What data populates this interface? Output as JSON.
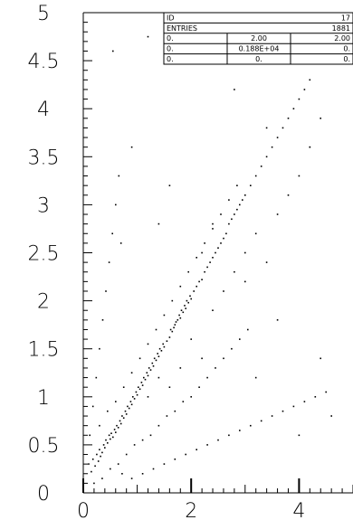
{
  "chart_data": {
    "type": "scatter",
    "title": "",
    "xlabel": "",
    "ylabel": "",
    "xlim": [
      0,
      5.0
    ],
    "ylim": [
      0,
      5.0
    ],
    "x_ticks": [
      "0",
      "2",
      "4"
    ],
    "y_ticks": [
      "0",
      "0.5",
      "1",
      "1.5",
      "2",
      "2.5",
      "3",
      "3.5",
      "4",
      "4.5",
      "5"
    ],
    "grid": false,
    "legend": "none",
    "marker_color": "#000000",
    "stats_box": {
      "id_label": "ID",
      "id_value": "17",
      "entries_label": "ENTRIES",
      "entries_value": "1881",
      "rows": [
        [
          "0.",
          "2.00",
          "2.00"
        ],
        [
          "0.",
          "0.188E+04",
          "0."
        ],
        [
          "0.",
          "0.",
          "0."
        ]
      ]
    },
    "series": [
      {
        "points": [
          [
            0.1,
            0.3
          ],
          [
            0.15,
            0.22
          ],
          [
            0.18,
            0.35
          ],
          [
            0.22,
            0.28
          ],
          [
            0.25,
            0.4
          ],
          [
            0.28,
            0.33
          ],
          [
            0.3,
            0.45
          ],
          [
            0.32,
            0.38
          ],
          [
            0.35,
            0.42
          ],
          [
            0.38,
            0.5
          ],
          [
            0.4,
            0.47
          ],
          [
            0.42,
            0.55
          ],
          [
            0.45,
            0.52
          ],
          [
            0.48,
            0.6
          ],
          [
            0.5,
            0.56
          ],
          [
            0.52,
            0.62
          ],
          [
            0.55,
            0.58
          ],
          [
            0.58,
            0.66
          ],
          [
            0.6,
            0.63
          ],
          [
            0.62,
            0.7
          ],
          [
            0.65,
            0.68
          ],
          [
            0.68,
            0.75
          ],
          [
            0.7,
            0.72
          ],
          [
            0.72,
            0.8
          ],
          [
            0.75,
            0.78
          ],
          [
            0.78,
            0.85
          ],
          [
            0.8,
            0.82
          ],
          [
            0.82,
            0.9
          ],
          [
            0.85,
            0.88
          ],
          [
            0.88,
            0.95
          ],
          [
            0.9,
            0.92
          ],
          [
            0.92,
            1.0
          ],
          [
            0.95,
            0.98
          ],
          [
            0.98,
            1.05
          ],
          [
            1.0,
            1.02
          ],
          [
            1.02,
            1.1
          ],
          [
            1.05,
            1.08
          ],
          [
            1.08,
            1.15
          ],
          [
            1.1,
            1.12
          ],
          [
            1.12,
            1.2
          ],
          [
            1.15,
            1.18
          ],
          [
            1.18,
            1.25
          ],
          [
            1.2,
            1.22
          ],
          [
            1.22,
            1.3
          ],
          [
            1.25,
            1.28
          ],
          [
            1.28,
            1.35
          ],
          [
            1.3,
            1.32
          ],
          [
            1.32,
            1.4
          ],
          [
            1.35,
            1.38
          ],
          [
            1.38,
            1.45
          ],
          [
            1.4,
            1.42
          ],
          [
            1.42,
            1.5
          ],
          [
            1.45,
            1.48
          ],
          [
            1.48,
            1.55
          ],
          [
            1.5,
            1.52
          ],
          [
            1.55,
            1.58
          ],
          [
            1.6,
            1.62
          ],
          [
            1.62,
            1.7
          ],
          [
            1.65,
            1.68
          ],
          [
            1.68,
            1.72
          ],
          [
            1.7,
            1.75
          ],
          [
            1.72,
            1.78
          ],
          [
            1.75,
            1.8
          ],
          [
            1.78,
            1.85
          ],
          [
            1.8,
            1.82
          ],
          [
            1.82,
            1.9
          ],
          [
            1.85,
            1.88
          ],
          [
            1.88,
            1.95
          ],
          [
            1.9,
            1.92
          ],
          [
            1.92,
            2.0
          ],
          [
            1.95,
            1.98
          ],
          [
            1.98,
            2.05
          ],
          [
            2.0,
            2.02
          ],
          [
            2.05,
            2.1
          ],
          [
            2.1,
            2.15
          ],
          [
            2.15,
            2.2
          ],
          [
            2.2,
            2.22
          ],
          [
            2.25,
            2.3
          ],
          [
            2.3,
            2.35
          ],
          [
            2.35,
            2.4
          ],
          [
            2.4,
            2.45
          ],
          [
            2.45,
            2.5
          ],
          [
            2.5,
            2.55
          ],
          [
            2.55,
            2.6
          ],
          [
            2.6,
            2.65
          ],
          [
            2.65,
            2.7
          ],
          [
            2.7,
            2.8
          ],
          [
            2.75,
            2.85
          ],
          [
            2.8,
            2.9
          ],
          [
            2.85,
            2.95
          ],
          [
            2.9,
            3.0
          ],
          [
            2.95,
            3.05
          ],
          [
            3.0,
            3.1
          ],
          [
            3.1,
            3.2
          ],
          [
            3.2,
            3.3
          ],
          [
            3.3,
            3.4
          ],
          [
            3.4,
            3.5
          ],
          [
            3.5,
            3.6
          ],
          [
            3.6,
            3.7
          ],
          [
            3.7,
            3.8
          ],
          [
            3.8,
            3.9
          ],
          [
            3.9,
            4.0
          ],
          [
            4.0,
            4.1
          ],
          [
            4.1,
            4.2
          ],
          [
            4.2,
            4.3
          ],
          [
            0.2,
            0.1
          ],
          [
            0.35,
            0.15
          ],
          [
            0.5,
            0.25
          ],
          [
            0.65,
            0.3
          ],
          [
            0.8,
            0.4
          ],
          [
            0.95,
            0.5
          ],
          [
            1.1,
            0.55
          ],
          [
            1.25,
            0.6
          ],
          [
            1.4,
            0.7
          ],
          [
            1.55,
            0.8
          ],
          [
            1.7,
            0.85
          ],
          [
            1.85,
            0.95
          ],
          [
            2.0,
            1.0
          ],
          [
            2.15,
            1.1
          ],
          [
            2.3,
            1.2
          ],
          [
            2.45,
            1.3
          ],
          [
            2.6,
            1.4
          ],
          [
            2.75,
            1.5
          ],
          [
            2.9,
            1.6
          ],
          [
            3.05,
            1.7
          ],
          [
            0.3,
            0.7
          ],
          [
            0.45,
            0.85
          ],
          [
            0.6,
            0.95
          ],
          [
            0.75,
            1.1
          ],
          [
            0.9,
            1.25
          ],
          [
            1.05,
            1.4
          ],
          [
            1.2,
            1.55
          ],
          [
            1.35,
            1.7
          ],
          [
            1.5,
            1.85
          ],
          [
            1.65,
            2.0
          ],
          [
            1.8,
            2.15
          ],
          [
            1.95,
            2.3
          ],
          [
            2.1,
            2.45
          ],
          [
            2.25,
            2.6
          ],
          [
            2.4,
            2.75
          ],
          [
            2.55,
            2.9
          ],
          [
            2.7,
            3.05
          ],
          [
            2.85,
            3.2
          ],
          [
            0.12,
            0.6
          ],
          [
            0.18,
            0.9
          ],
          [
            0.24,
            1.2
          ],
          [
            0.3,
            1.5
          ],
          [
            0.36,
            1.8
          ],
          [
            0.42,
            2.1
          ],
          [
            0.48,
            2.4
          ],
          [
            0.54,
            2.7
          ],
          [
            0.6,
            3.0
          ],
          [
            0.66,
            3.3
          ],
          [
            0.72,
            0.2
          ],
          [
            0.9,
            0.15
          ],
          [
            1.1,
            0.2
          ],
          [
            1.3,
            0.25
          ],
          [
            1.5,
            0.3
          ],
          [
            1.7,
            0.35
          ],
          [
            1.9,
            0.4
          ],
          [
            2.1,
            0.45
          ],
          [
            2.3,
            0.5
          ],
          [
            2.5,
            0.55
          ],
          [
            2.7,
            0.6
          ],
          [
            2.9,
            0.65
          ],
          [
            3.1,
            0.7
          ],
          [
            3.3,
            0.75
          ],
          [
            3.5,
            0.8
          ],
          [
            3.7,
            0.85
          ],
          [
            3.9,
            0.9
          ],
          [
            4.1,
            0.95
          ],
          [
            4.3,
            1.0
          ],
          [
            4.5,
            1.05
          ],
          [
            1.2,
            1.0
          ],
          [
            1.4,
            1.2
          ],
          [
            1.6,
            1.1
          ],
          [
            1.8,
            1.3
          ],
          [
            2.0,
            1.6
          ],
          [
            2.2,
            1.4
          ],
          [
            2.4,
            1.9
          ],
          [
            2.6,
            2.1
          ],
          [
            2.8,
            2.3
          ],
          [
            3.0,
            2.5
          ],
          [
            3.2,
            2.7
          ],
          [
            3.4,
            2.4
          ],
          [
            3.6,
            2.9
          ],
          [
            3.8,
            3.1
          ],
          [
            4.0,
            3.3
          ],
          [
            4.2,
            3.6
          ],
          [
            4.4,
            3.9
          ],
          [
            0.55,
            4.6
          ],
          [
            1.2,
            4.75
          ],
          [
            2.0,
            4.5
          ],
          [
            2.8,
            4.2
          ],
          [
            3.4,
            3.8
          ],
          [
            4.2,
            3.6
          ],
          [
            0.9,
            3.6
          ],
          [
            1.6,
            3.2
          ],
          [
            2.4,
            2.8
          ],
          [
            3.0,
            2.2
          ],
          [
            3.6,
            1.8
          ],
          [
            4.4,
            1.4
          ],
          [
            0.7,
            2.6
          ],
          [
            1.4,
            2.8
          ],
          [
            2.2,
            2.5
          ],
          [
            3.2,
            1.2
          ],
          [
            4.0,
            0.6
          ],
          [
            4.6,
            0.8
          ]
        ]
      }
    ]
  }
}
